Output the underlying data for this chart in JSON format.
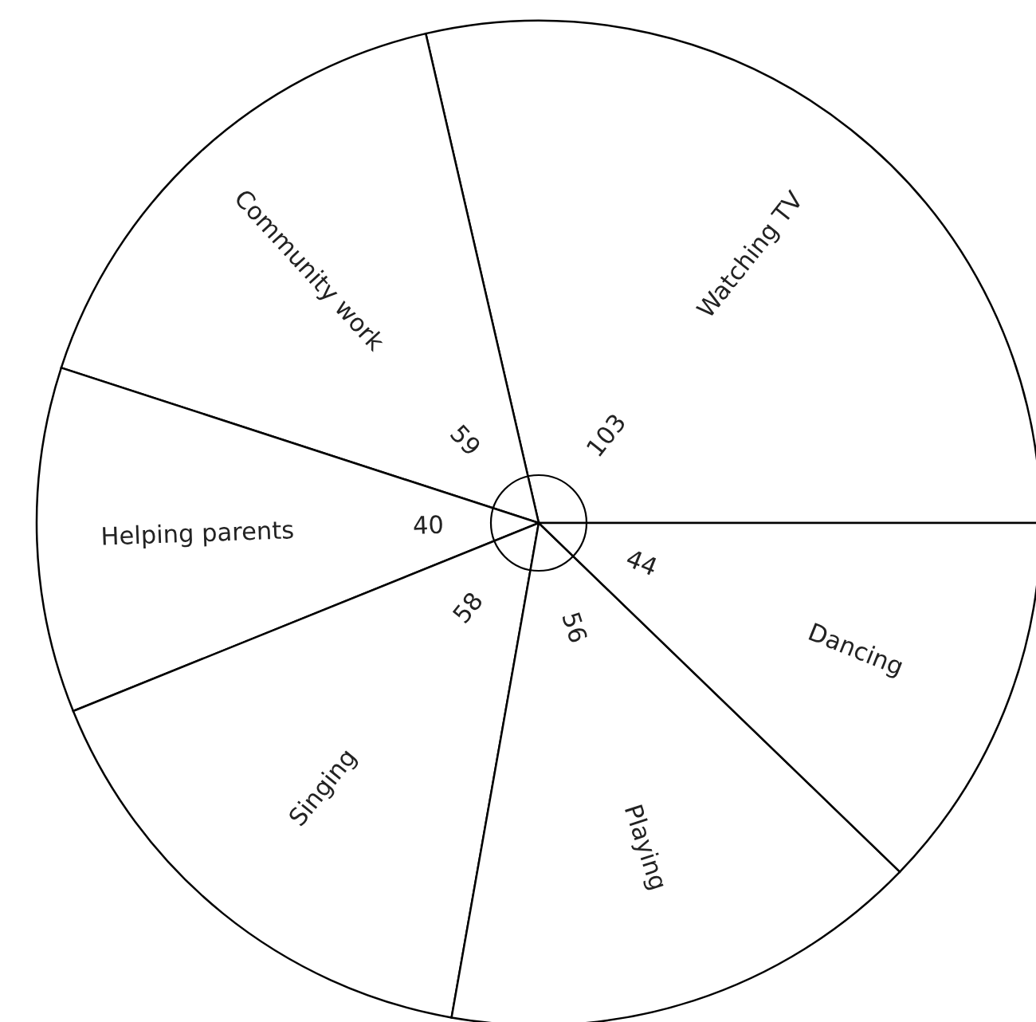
{
  "chart_data": {
    "type": "pie",
    "categories": [
      "Watching TV",
      "Community work",
      "Helping parents",
      "Singing",
      "Playing",
      "Dancing"
    ],
    "values": [
      103,
      59,
      40,
      58,
      56,
      44
    ],
    "colors": [
      "#ffffff",
      "#ffffff",
      "#ffffff",
      "#ffffff",
      "#ffffff",
      "#ffffff"
    ],
    "data_labels": true
  }
}
